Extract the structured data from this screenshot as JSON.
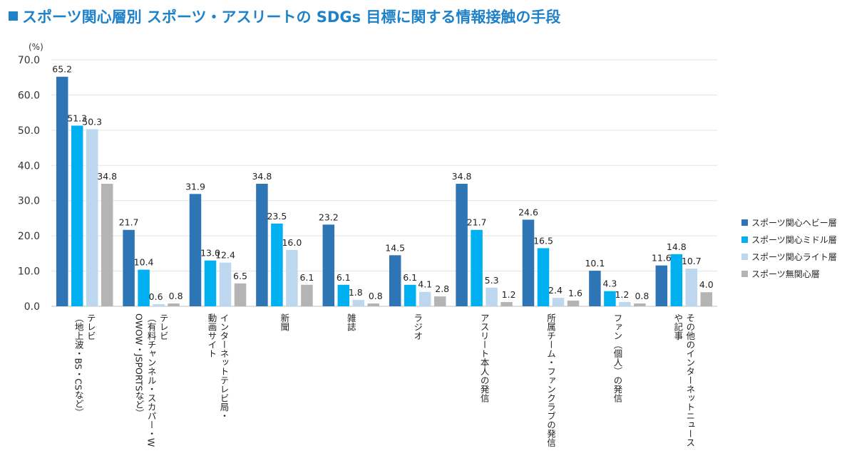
{
  "title": "スポーツ関心層別 スポーツ・アスリートの SDGs 目標に関する情報接触の手段",
  "chart_data": {
    "type": "bar",
    "unit_label": "(%)",
    "ylim": [
      0,
      70
    ],
    "yticks": [
      "0.0",
      "10.0",
      "20.0",
      "30.0",
      "40.0",
      "50.0",
      "60.0",
      "70.0"
    ],
    "grid": true,
    "legend_position": "right",
    "categories": [
      [
        "テレビ",
        "（地上波・BS・CSなど）"
      ],
      [
        "テレビ",
        "（有料チャンネル・スカパー・W",
        "OWOW・JSPORTSなど）"
      ],
      [
        "インターネットテレビ局・",
        "動画サイト"
      ],
      [
        "新聞"
      ],
      [
        "雑誌"
      ],
      [
        "ラジオ"
      ],
      [
        "アスリート本人の発信"
      ],
      [
        "所属チーム・ファンクラブの発信"
      ],
      [
        "ファン（個人）の発信"
      ],
      [
        "その他のインターネットニュース",
        "や記事"
      ]
    ],
    "series": [
      {
        "name": "スポーツ関心ヘビー層",
        "color": "#2e75b6",
        "values": [
          65.2,
          21.7,
          31.9,
          34.8,
          23.2,
          14.5,
          34.8,
          24.6,
          10.1,
          11.6
        ],
        "labels": [
          "65.2",
          "21.7",
          "31.9",
          "34.8",
          "23.2",
          "14.5",
          "34.8",
          "24.6",
          "10.1",
          "11.6"
        ]
      },
      {
        "name": "スポーツ関心ミドル層",
        "color": "#00b0f0",
        "values": [
          51.3,
          10.4,
          13.0,
          23.5,
          6.1,
          6.1,
          21.7,
          16.5,
          4.3,
          14.8
        ],
        "labels": [
          "51.3",
          "10.4",
          "13.0",
          "23.5",
          "6.1",
          "6.1",
          "21.7",
          "16.5",
          "4.3",
          "14.8"
        ]
      },
      {
        "name": "スポーツ関心ライト層",
        "color": "#bdd7ee",
        "values": [
          50.3,
          0.6,
          12.4,
          16.0,
          1.8,
          4.1,
          5.3,
          2.4,
          1.2,
          10.7
        ],
        "labels": [
          "50.3",
          "0.6",
          "12.4",
          "16.0",
          "1.8",
          "4.1",
          "5.3",
          "2.4",
          "1.2",
          "10.7"
        ]
      },
      {
        "name": "スポーツ無関心層",
        "color": "#b4b4b4",
        "values": [
          34.8,
          0.8,
          6.5,
          6.1,
          0.8,
          2.8,
          1.2,
          1.6,
          0.8,
          4.0
        ],
        "labels": [
          "34.8",
          "0.8",
          "6.5",
          "6.1",
          "0.8",
          "2.8",
          "1.2",
          "1.6",
          "0.8",
          "4.0"
        ]
      }
    ]
  }
}
